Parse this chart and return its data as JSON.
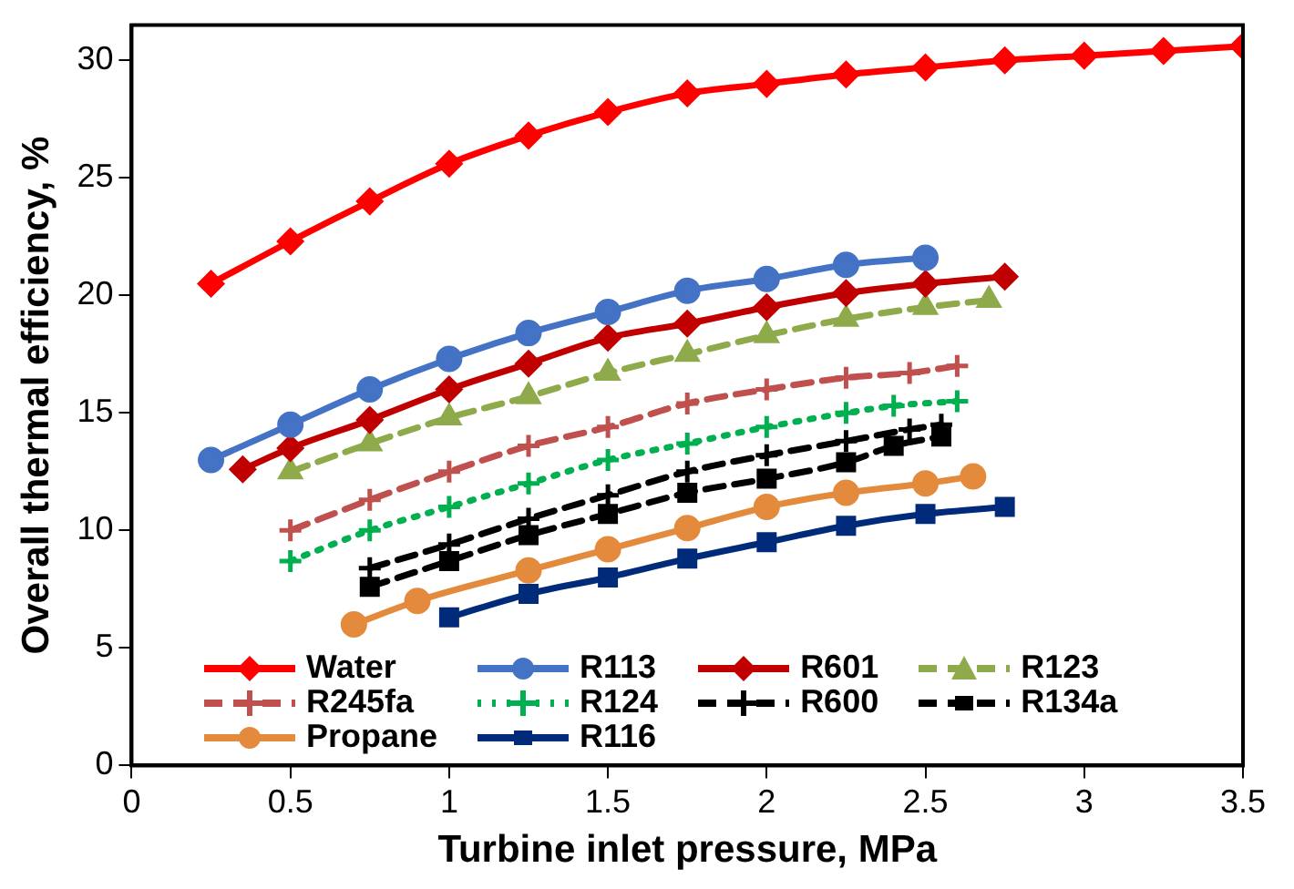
{
  "chart_data": {
    "type": "line",
    "xlabel": "Turbine inlet pressure, MPa",
    "ylabel": "Overall thermal efficiency, %",
    "xlim": [
      0,
      3.5
    ],
    "xticks": [
      0,
      0.5,
      1,
      1.5,
      2,
      2.5,
      3,
      3.5
    ],
    "ylim": [
      0,
      31.5
    ],
    "yticks": [
      0,
      5,
      10,
      15,
      20,
      25,
      30
    ],
    "grid": false,
    "legend": "bottom left",
    "series": [
      {
        "name": "Water",
        "color": "#ff0000",
        "marker": "diamond",
        "line_style": "solid",
        "x": [
          0.25,
          0.5,
          0.75,
          1,
          1.25,
          1.5,
          1.75,
          2,
          2.25,
          2.5,
          2.75,
          3,
          3.25,
          3.5
        ],
        "values": [
          20.5,
          22.3,
          24,
          25.6,
          26.8,
          27.8,
          28.6,
          29,
          29.4,
          29.7,
          30,
          30.2,
          30.4,
          30.6
        ]
      },
      {
        "name": "R113",
        "color": "#4472c4",
        "marker": "circle",
        "line_style": "solid",
        "x": [
          0.25,
          0.5,
          0.75,
          1,
          1.25,
          1.5,
          1.75,
          2,
          2.25,
          2.5
        ],
        "values": [
          13,
          14.5,
          16,
          17.3,
          18.4,
          19.3,
          20.2,
          20.7,
          21.3,
          21.6
        ]
      },
      {
        "name": "R601",
        "color": "#c00000",
        "marker": "diamond",
        "line_style": "solid",
        "x": [
          0.35,
          0.5,
          0.75,
          1,
          1.25,
          1.5,
          1.75,
          2,
          2.25,
          2.5,
          2.75
        ],
        "values": [
          12.6,
          13.5,
          14.7,
          16,
          17.1,
          18.2,
          18.8,
          19.5,
          20.1,
          20.5,
          20.8
        ]
      },
      {
        "name": "R123",
        "color": "#8faa4b",
        "marker": "triangle",
        "line_style": "dashed",
        "x": [
          0.5,
          0.75,
          1,
          1.25,
          1.5,
          1.75,
          2,
          2.25,
          2.5,
          2.7
        ],
        "values": [
          12.5,
          13.7,
          14.8,
          15.7,
          16.7,
          17.5,
          18.3,
          19,
          19.5,
          19.8
        ]
      },
      {
        "name": "R245fa",
        "color": "#c0504d",
        "marker": "cross",
        "line_style": "dashed",
        "x": [
          0.5,
          0.75,
          1,
          1.25,
          1.5,
          1.75,
          2,
          2.25,
          2.45,
          2.6
        ],
        "values": [
          10,
          11.3,
          12.5,
          13.6,
          14.4,
          15.4,
          16,
          16.5,
          16.7,
          17
        ]
      },
      {
        "name": "R124",
        "color": "#00b050",
        "marker": "cross",
        "line_style": "dotted",
        "x": [
          0.5,
          0.75,
          1,
          1.25,
          1.5,
          1.75,
          2,
          2.25,
          2.4,
          2.6
        ],
        "values": [
          8.7,
          10,
          11,
          12,
          13,
          13.7,
          14.4,
          15,
          15.3,
          15.5
        ]
      },
      {
        "name": "R600",
        "color": "#000000",
        "marker": "cross",
        "line_style": "dashed",
        "x": [
          0.75,
          1,
          1.25,
          1.5,
          1.75,
          2,
          2.25,
          2.45,
          2.55
        ],
        "values": [
          8.4,
          9.4,
          10.5,
          11.5,
          12.5,
          13.2,
          13.8,
          14.3,
          14.5
        ]
      },
      {
        "name": "R134a",
        "color": "#000000",
        "marker": "square",
        "line_style": "dashed",
        "x": [
          0.75,
          1,
          1.25,
          1.5,
          1.75,
          2,
          2.25,
          2.4,
          2.55
        ],
        "values": [
          7.6,
          8.7,
          9.8,
          10.7,
          11.6,
          12.2,
          12.9,
          13.6,
          14
        ]
      },
      {
        "name": "Propane",
        "color": "#e38a3c",
        "marker": "circle",
        "line_style": "solid",
        "x": [
          0.7,
          0.9,
          1.25,
          1.5,
          1.75,
          2,
          2.25,
          2.5,
          2.65
        ],
        "values": [
          6,
          7,
          8.3,
          9.2,
          10.1,
          11,
          11.6,
          12,
          12.3
        ]
      },
      {
        "name": "R116",
        "color": "#002a7a",
        "marker": "square",
        "line_style": "solid",
        "x": [
          1,
          1.25,
          1.5,
          1.75,
          2,
          2.25,
          2.5,
          2.75
        ],
        "values": [
          6.3,
          7.3,
          8,
          8.8,
          9.5,
          10.2,
          10.7,
          11
        ]
      }
    ]
  }
}
